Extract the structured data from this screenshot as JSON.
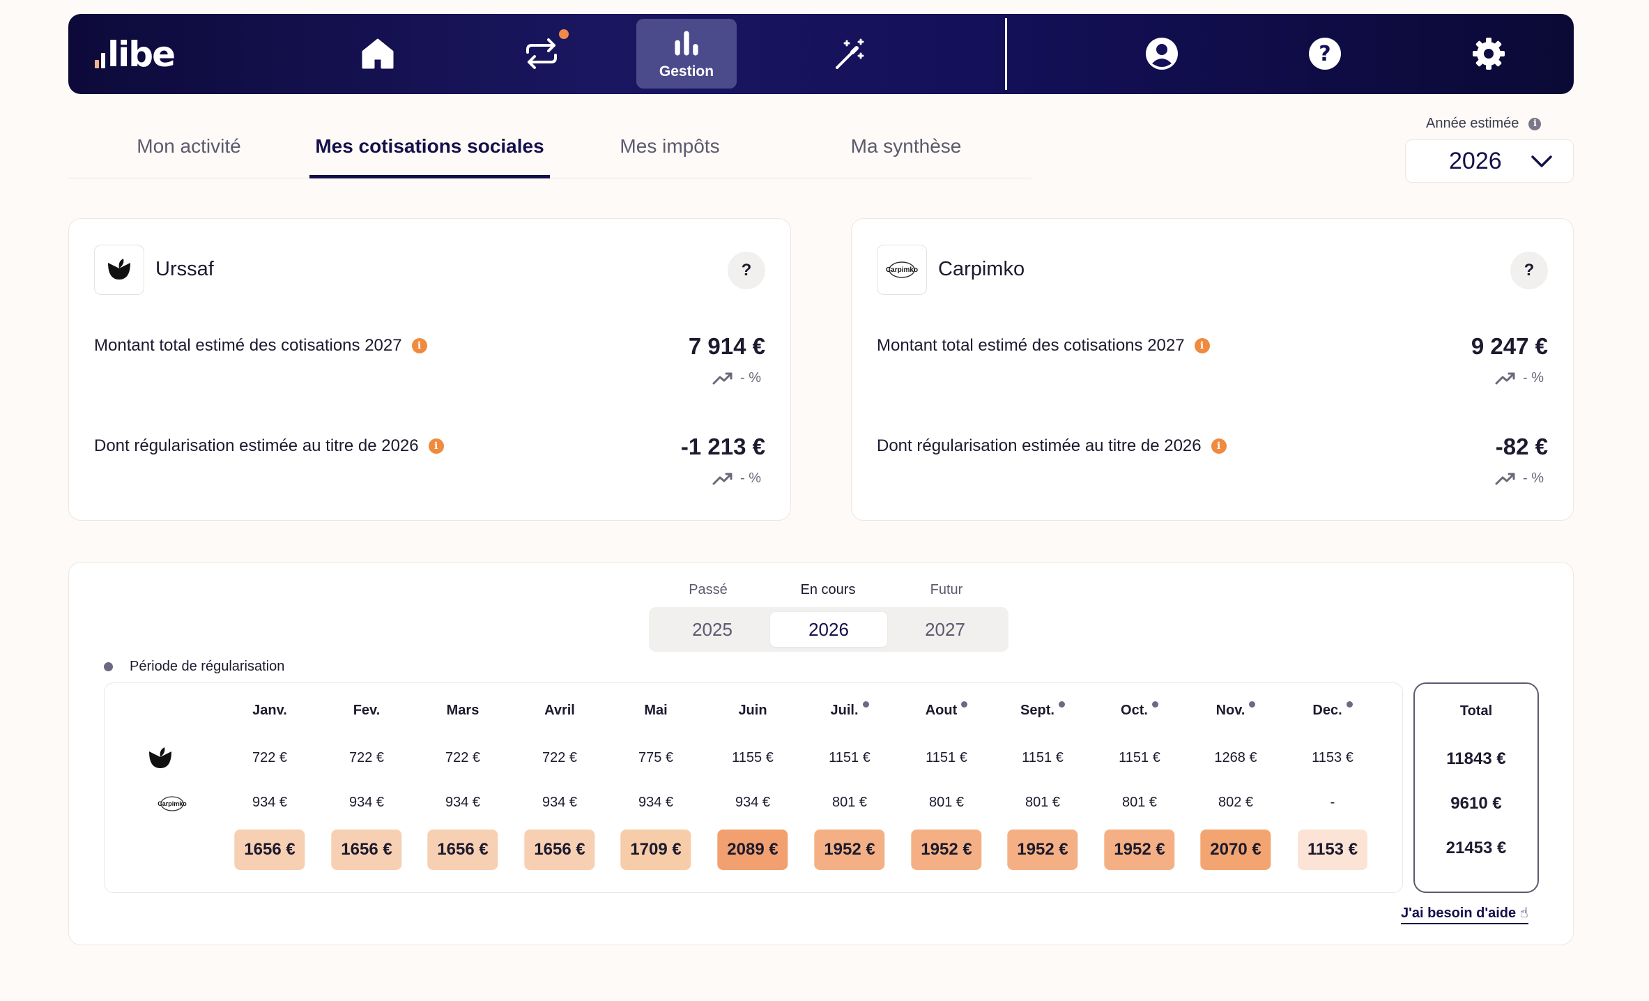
{
  "app": {
    "logo_text": "libe"
  },
  "nav": {
    "home_label": "Accueil",
    "active_label": "Gestion"
  },
  "tabs": [
    {
      "label": "Mon activité"
    },
    {
      "label": "Mes cotisations sociales"
    },
    {
      "label": "Mes impôts"
    },
    {
      "label": "Ma synthèse"
    }
  ],
  "year_select": {
    "label": "Année estimée",
    "value": "2026"
  },
  "cards": [
    {
      "name": "Urssaf",
      "total_label": "Montant total estimé des cotisations 2027",
      "total_amount": "7 914 €",
      "total_trend": "- %",
      "reg_label": "Dont régularisation estimée au titre de 2026",
      "reg_amount": "-1 213 €",
      "reg_trend": "- %",
      "help": "?"
    },
    {
      "name": "Carpimko",
      "logo_text": "Carpimko",
      "total_label": "Montant total estimé des cotisations 2027",
      "total_amount": "9 247 €",
      "total_trend": "- %",
      "reg_label": "Dont régularisation estimée au titre de 2026",
      "reg_amount": "-82 €",
      "reg_trend": "- %",
      "help": "?"
    }
  ],
  "period": {
    "captions": [
      "Passé",
      "En cours",
      "Futur"
    ],
    "years": [
      "2025",
      "2026",
      "2027"
    ],
    "selected": "2026"
  },
  "legend": {
    "label": "Période de régularisation"
  },
  "months": [
    {
      "name": "Janv.",
      "reg": false,
      "urssaf": "722 €",
      "carpimko": "934 €",
      "total": "1656 €",
      "color": "#f7cfb2"
    },
    {
      "name": "Fev.",
      "reg": false,
      "urssaf": "722 €",
      "carpimko": "934 €",
      "total": "1656 €",
      "color": "#f7cfb2"
    },
    {
      "name": "Mars",
      "reg": false,
      "urssaf": "722 €",
      "carpimko": "934 €",
      "total": "1656 €",
      "color": "#f7cfb2"
    },
    {
      "name": "Avril",
      "reg": false,
      "urssaf": "722 €",
      "carpimko": "934 €",
      "total": "1656 €",
      "color": "#f7cfb2"
    },
    {
      "name": "Mai",
      "reg": false,
      "urssaf": "775 €",
      "carpimko": "934 €",
      "total": "1709 €",
      "color": "#f7cca9"
    },
    {
      "name": "Juin",
      "reg": false,
      "urssaf": "1155 €",
      "carpimko": "934 €",
      "total": "2089 €",
      "color": "#f2a06f"
    },
    {
      "name": "Juil.",
      "reg": true,
      "urssaf": "1151 €",
      "carpimko": "801 €",
      "total": "1952 €",
      "color": "#f4b084"
    },
    {
      "name": "Aout",
      "reg": true,
      "urssaf": "1151 €",
      "carpimko": "801 €",
      "total": "1952 €",
      "color": "#f4b084"
    },
    {
      "name": "Sept.",
      "reg": true,
      "urssaf": "1151 €",
      "carpimko": "801 €",
      "total": "1952 €",
      "color": "#f4b084"
    },
    {
      "name": "Oct.",
      "reg": true,
      "urssaf": "1151 €",
      "carpimko": "801 €",
      "total": "1952 €",
      "color": "#f4b084"
    },
    {
      "name": "Nov.",
      "reg": true,
      "urssaf": "1268 €",
      "carpimko": "802 €",
      "total": "2070 €",
      "color": "#f2a571"
    },
    {
      "name": "Dec.",
      "reg": true,
      "urssaf": "1153 €",
      "carpimko": "-",
      "total": "1153 €",
      "color": "#fbe4d5"
    }
  ],
  "totals": {
    "label": "Total",
    "urssaf": "11843 €",
    "carpimko": "9610 €",
    "total": "21453 €"
  },
  "help_link": "J'ai besoin d'aide ☝"
}
